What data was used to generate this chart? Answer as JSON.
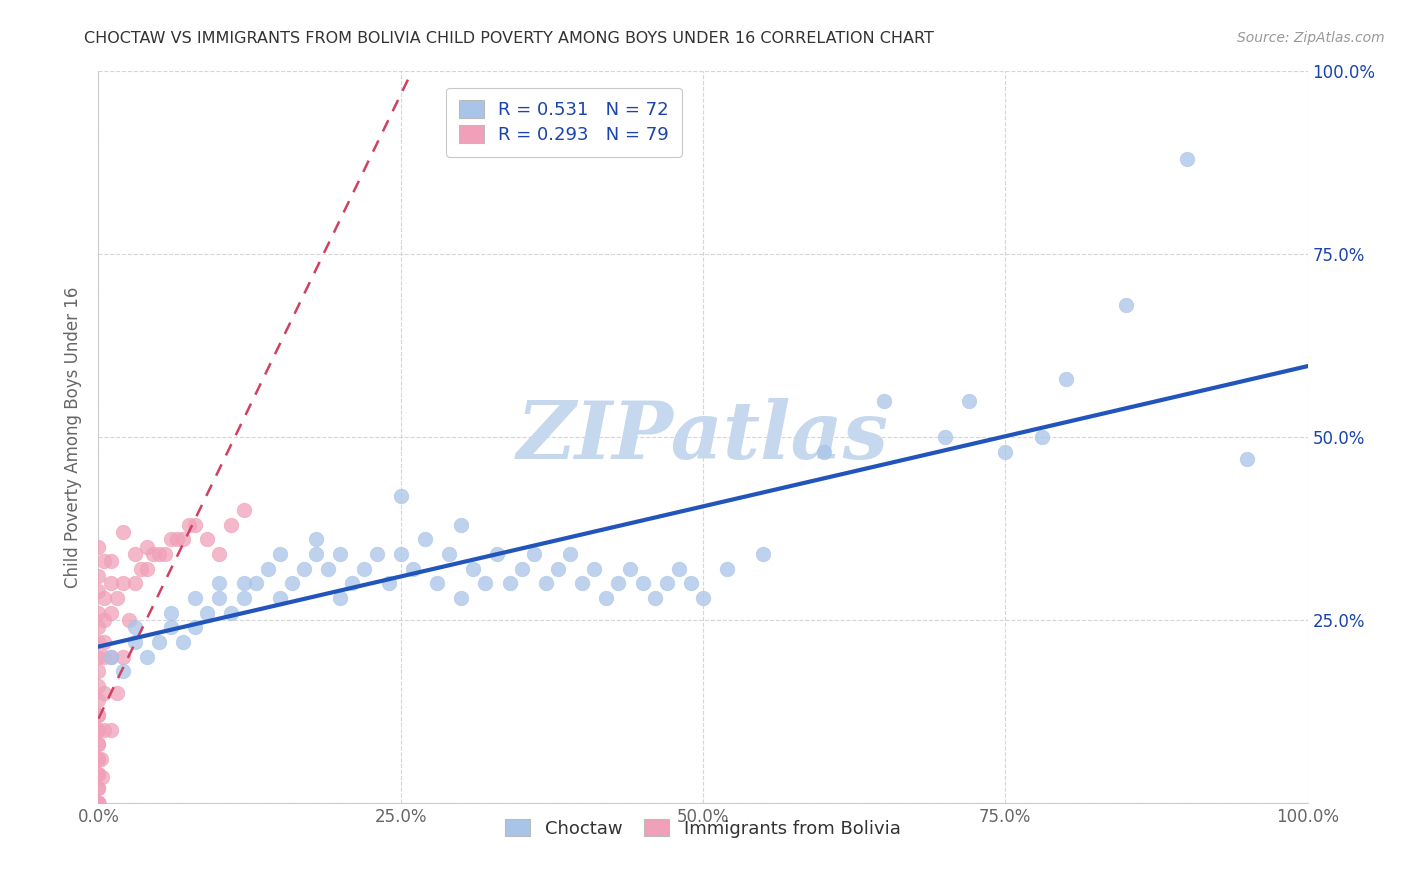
{
  "title": "CHOCTAW VS IMMIGRANTS FROM BOLIVIA CHILD POVERTY AMONG BOYS UNDER 16 CORRELATION CHART",
  "source": "Source: ZipAtlas.com",
  "ylabel": "Child Poverty Among Boys Under 16",
  "watermark": "ZIPatlas",
  "choctaw_R": 0.531,
  "choctaw_N": 72,
  "bolivia_R": 0.293,
  "bolivia_N": 79,
  "choctaw_color": "#a8c4e8",
  "bolivia_color": "#f0a0b8",
  "choctaw_line_color": "#2255bb",
  "bolivia_line_color": "#d04060",
  "choctaw_x": [
    0.01,
    0.02,
    0.03,
    0.03,
    0.04,
    0.05,
    0.06,
    0.06,
    0.07,
    0.08,
    0.08,
    0.09,
    0.1,
    0.1,
    0.11,
    0.12,
    0.12,
    0.13,
    0.14,
    0.15,
    0.15,
    0.16,
    0.17,
    0.18,
    0.18,
    0.19,
    0.2,
    0.2,
    0.21,
    0.22,
    0.23,
    0.24,
    0.25,
    0.26,
    0.27,
    0.28,
    0.29,
    0.3,
    0.31,
    0.32,
    0.33,
    0.34,
    0.35,
    0.36,
    0.37,
    0.38,
    0.39,
    0.4,
    0.41,
    0.42,
    0.43,
    0.44,
    0.45,
    0.46,
    0.47,
    0.48,
    0.49,
    0.5,
    0.52,
    0.55,
    0.6,
    0.65,
    0.7,
    0.72,
    0.75,
    0.78,
    0.8,
    0.85,
    0.9,
    0.95,
    0.25,
    0.3
  ],
  "choctaw_y": [
    0.2,
    0.18,
    0.22,
    0.24,
    0.2,
    0.22,
    0.24,
    0.26,
    0.22,
    0.28,
    0.24,
    0.26,
    0.28,
    0.3,
    0.26,
    0.3,
    0.28,
    0.3,
    0.32,
    0.28,
    0.34,
    0.3,
    0.32,
    0.34,
    0.36,
    0.32,
    0.28,
    0.34,
    0.3,
    0.32,
    0.34,
    0.3,
    0.34,
    0.32,
    0.36,
    0.3,
    0.34,
    0.28,
    0.32,
    0.3,
    0.34,
    0.3,
    0.32,
    0.34,
    0.3,
    0.32,
    0.34,
    0.3,
    0.32,
    0.28,
    0.3,
    0.32,
    0.3,
    0.28,
    0.3,
    0.32,
    0.3,
    0.28,
    0.32,
    0.34,
    0.48,
    0.55,
    0.5,
    0.55,
    0.48,
    0.5,
    0.58,
    0.68,
    0.88,
    0.47,
    0.42,
    0.38
  ],
  "bolivia_x": [
    0.0,
    0.0,
    0.0,
    0.0,
    0.0,
    0.0,
    0.0,
    0.0,
    0.0,
    0.0,
    0.0,
    0.0,
    0.0,
    0.0,
    0.0,
    0.0,
    0.0,
    0.0,
    0.0,
    0.0,
    0.0,
    0.0,
    0.0,
    0.0,
    0.0,
    0.0,
    0.0,
    0.0,
    0.0,
    0.0,
    0.0,
    0.0,
    0.0,
    0.0,
    0.0,
    0.0,
    0.0,
    0.0,
    0.0,
    0.0,
    0.005,
    0.005,
    0.005,
    0.005,
    0.005,
    0.005,
    0.01,
    0.01,
    0.01,
    0.01,
    0.015,
    0.015,
    0.02,
    0.02,
    0.025,
    0.03,
    0.035,
    0.04,
    0.045,
    0.05,
    0.055,
    0.06,
    0.065,
    0.07,
    0.075,
    0.08,
    0.09,
    0.1,
    0.11,
    0.12,
    0.01,
    0.0,
    0.0,
    0.005,
    0.02,
    0.03,
    0.04,
    0.002,
    0.003
  ],
  "bolivia_y": [
    0.0,
    0.0,
    0.0,
    0.0,
    0.0,
    0.0,
    0.0,
    0.0,
    0.0,
    0.0,
    0.0,
    0.0,
    0.0,
    0.0,
    0.0,
    0.0,
    0.0,
    0.0,
    0.0,
    0.0,
    0.02,
    0.02,
    0.04,
    0.04,
    0.06,
    0.06,
    0.08,
    0.08,
    0.1,
    0.1,
    0.12,
    0.12,
    0.14,
    0.16,
    0.18,
    0.2,
    0.22,
    0.24,
    0.26,
    0.29,
    0.1,
    0.15,
    0.2,
    0.22,
    0.25,
    0.28,
    0.1,
    0.2,
    0.26,
    0.3,
    0.15,
    0.28,
    0.2,
    0.3,
    0.25,
    0.3,
    0.32,
    0.32,
    0.34,
    0.34,
    0.34,
    0.36,
    0.36,
    0.36,
    0.38,
    0.38,
    0.36,
    0.34,
    0.38,
    0.4,
    0.33,
    0.31,
    0.35,
    0.33,
    0.37,
    0.34,
    0.35,
    0.06,
    0.035
  ],
  "xlim": [
    0.0,
    1.0
  ],
  "ylim": [
    0.0,
    1.0
  ],
  "xticks": [
    0.0,
    0.25,
    0.5,
    0.75,
    1.0
  ],
  "yticks": [
    0.0,
    0.25,
    0.5,
    0.75,
    1.0
  ],
  "xticklabels": [
    "0.0%",
    "25.0%",
    "50.0%",
    "75.0%",
    "100.0%"
  ],
  "right_yticklabels": [
    "",
    "25.0%",
    "50.0%",
    "75.0%",
    "100.0%"
  ],
  "legend_labels": [
    "Choctaw",
    "Immigrants from Bolivia"
  ],
  "title_color": "#333333",
  "axis_color": "#666666",
  "grid_color": "#cccccc",
  "watermark_color": "#c5d8ee",
  "legend_r_color": "#1a44aa",
  "legend_n_color": "#cc2222"
}
